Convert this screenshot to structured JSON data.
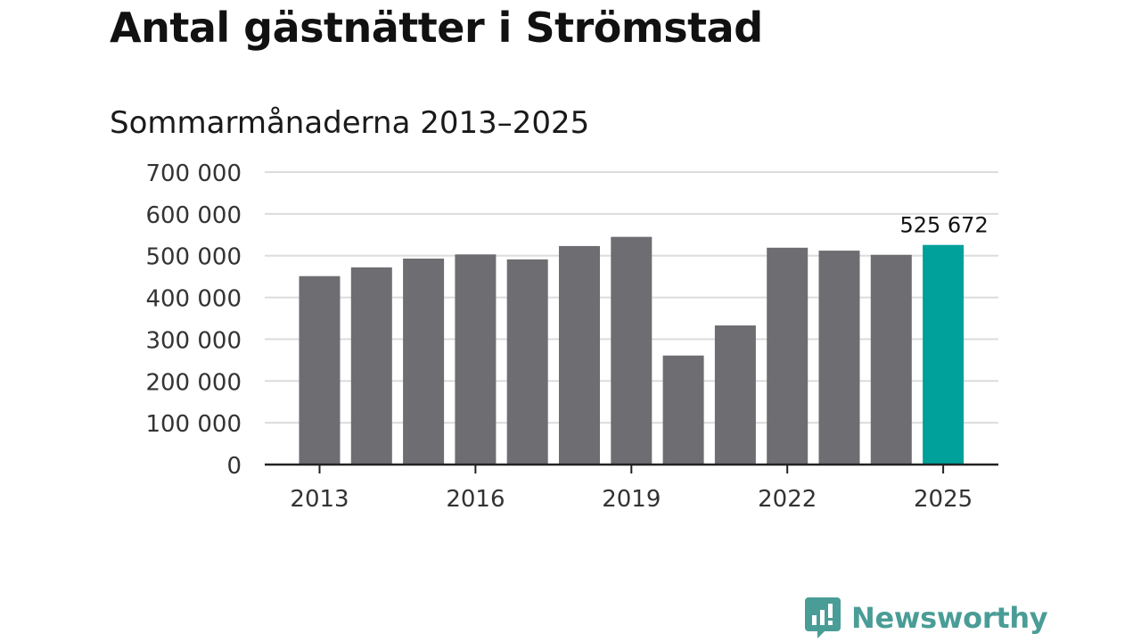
{
  "title": "Antal gästnätter i Strömstad",
  "subtitle": "Sommarmånaderna 2013–2025",
  "brand": {
    "name": "Newsworthy",
    "logo_icon": "bar-chart-speech-bubble-icon",
    "color": "#4a9d96"
  },
  "colors": {
    "bar": "#6e6d72",
    "highlight": "#00a19a",
    "grid": "#dcdcdc",
    "axis": "#222222",
    "text": "#333333"
  },
  "chart_data": {
    "type": "bar",
    "categories": [
      "2013",
      "2014",
      "2015",
      "2016",
      "2017",
      "2018",
      "2019",
      "2020",
      "2021",
      "2022",
      "2023",
      "2024",
      "2025"
    ],
    "values": [
      451000,
      472000,
      493000,
      503000,
      491000,
      523000,
      545000,
      261000,
      333000,
      519000,
      512000,
      502000,
      525672
    ],
    "highlight_index": 12,
    "data_labels": [
      {
        "index": 12,
        "text": "525 672"
      }
    ],
    "x_tick_labels": [
      "2013",
      "2016",
      "2019",
      "2022",
      "2025"
    ],
    "x_tick_indices": [
      0,
      3,
      6,
      9,
      12
    ],
    "y_ticks": [
      0,
      100000,
      200000,
      300000,
      400000,
      500000,
      600000,
      700000
    ],
    "y_tick_labels": [
      "0",
      "100 000",
      "200 000",
      "300 000",
      "400 000",
      "500 000",
      "600 000",
      "700 000"
    ],
    "ylim": [
      0,
      700000
    ],
    "grid": true,
    "legend": false
  }
}
